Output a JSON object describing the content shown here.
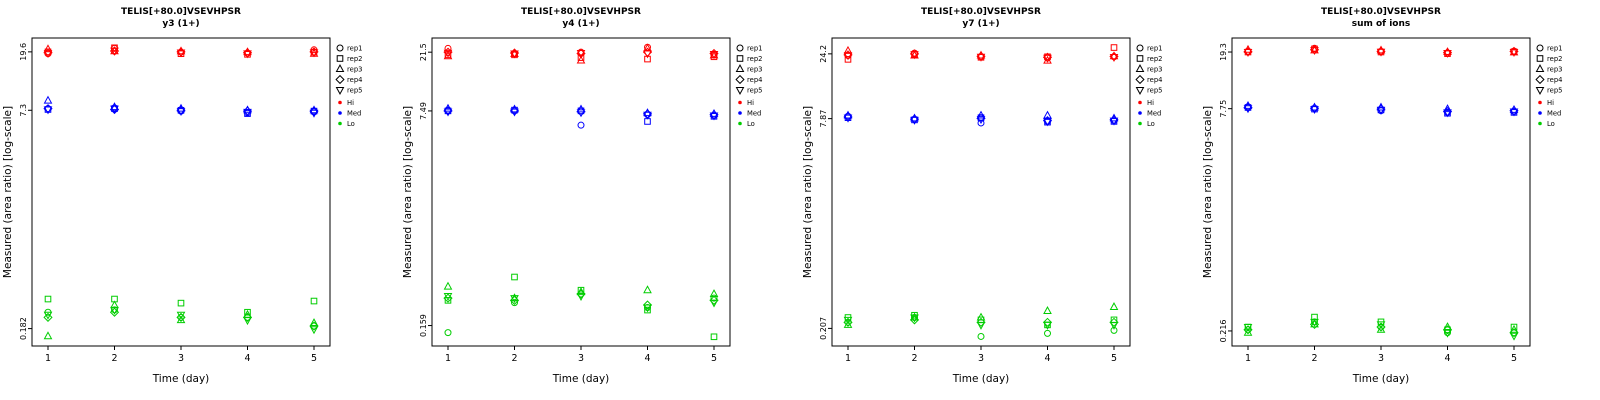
{
  "axes": {
    "xlabel": "Time (day)",
    "ylabel": "Measured (area ratio) [log-scale]"
  },
  "legend": {
    "reps": [
      {
        "label": "rep1",
        "symbol": "circle"
      },
      {
        "label": "rep2",
        "symbol": "square"
      },
      {
        "label": "rep3",
        "symbol": "triangle"
      },
      {
        "label": "rep4",
        "symbol": "diamond"
      },
      {
        "label": "rep5",
        "symbol": "triangle-down"
      }
    ],
    "levels": [
      {
        "label": "Hi",
        "color": "#FF0000"
      },
      {
        "label": "Med",
        "color": "#0000FF"
      },
      {
        "label": "Lo",
        "color": "#00CD00"
      }
    ]
  },
  "chart_data": [
    {
      "type": "scatter",
      "title": "TELIS[+80.0]VSEVHPSR",
      "subtitle": "y3 (1+)",
      "xlabel": "Time (day)",
      "ylabel": "Measured (area ratio) [log-scale]",
      "y_scale": "log",
      "x_ticks": [
        1,
        2,
        3,
        4,
        5
      ],
      "y_ticks": [
        19.6,
        7.3,
        0.182
      ],
      "series": [
        {
          "name": "Hi",
          "color": "#FF0000",
          "values_by_day": [
            [
              19.0,
              19.6,
              20.5,
              19.3,
              19.2
            ],
            [
              20.8,
              21.0,
              19.8,
              19.9,
              20.0
            ],
            [
              19.5,
              19.0,
              19.8,
              19.6,
              19.4
            ],
            [
              19.2,
              18.8,
              19.5,
              19.3,
              19.1
            ],
            [
              20.3,
              19.5,
              19.0,
              19.6,
              19.4
            ]
          ]
        },
        {
          "name": "Med",
          "color": "#0000FF",
          "values_by_day": [
            [
              7.5,
              7.4,
              8.6,
              7.5,
              7.4
            ],
            [
              7.6,
              7.5,
              7.7,
              7.4,
              7.5
            ],
            [
              7.2,
              7.3,
              7.5,
              7.3,
              7.2
            ],
            [
              7.0,
              6.9,
              7.3,
              7.2,
              7.1
            ],
            [
              7.1,
              7.2,
              7.3,
              7.2,
              7.0
            ]
          ]
        },
        {
          "name": "Lo",
          "color": "#00CD00",
          "values_by_day": [
            [
              0.24,
              0.3,
              0.16,
              0.22,
              0.23
            ],
            [
              0.25,
              0.3,
              0.27,
              0.24,
              0.25
            ],
            [
              0.22,
              0.28,
              0.21,
              0.22,
              0.23
            ],
            [
              0.22,
              0.24,
              0.23,
              0.22,
              0.21
            ],
            [
              0.19,
              0.29,
              0.2,
              0.19,
              0.18
            ]
          ]
        }
      ]
    },
    {
      "type": "scatter",
      "title": "TELIS[+80.0]VSEVHPSR",
      "subtitle": "y4 (1+)",
      "xlabel": "Time (day)",
      "ylabel": "Measured (area ratio) [log-scale]",
      "y_scale": "log",
      "x_ticks": [
        1,
        2,
        3,
        4,
        5
      ],
      "y_ticks": [
        21.5,
        7.49,
        0.159
      ],
      "series": [
        {
          "name": "Hi",
          "color": "#FF0000",
          "values_by_day": [
            [
              23.0,
              20.5,
              20.0,
              21.5,
              21.3
            ],
            [
              21.0,
              20.5,
              20.8,
              21.2,
              21.0
            ],
            [
              21.5,
              19.5,
              18.5,
              21.0,
              21.2
            ],
            [
              23.5,
              19.0,
              23.0,
              21.5,
              21.0
            ],
            [
              20.5,
              19.8,
              20.3,
              21.0,
              20.8
            ]
          ]
        },
        {
          "name": "Med",
          "color": "#0000FF",
          "values_by_day": [
            [
              7.6,
              7.5,
              7.8,
              7.5,
              7.4
            ],
            [
              7.5,
              7.6,
              7.7,
              7.5,
              7.4
            ],
            [
              5.8,
              7.5,
              7.7,
              7.4,
              7.3
            ],
            [
              7.0,
              6.2,
              7.2,
              7.1,
              7.0
            ],
            [
              6.9,
              6.8,
              7.1,
              7.0,
              6.9
            ]
          ]
        },
        {
          "name": "Lo",
          "color": "#00CD00",
          "values_by_day": [
            [
              0.14,
              0.25,
              0.32,
              0.26,
              0.27
            ],
            [
              0.24,
              0.38,
              0.26,
              0.25,
              0.26
            ],
            [
              0.28,
              0.3,
              0.29,
              0.28,
              0.27
            ],
            [
              0.22,
              0.21,
              0.3,
              0.23,
              0.22
            ],
            [
              0.26,
              0.13,
              0.28,
              0.25,
              0.24
            ]
          ]
        }
      ]
    },
    {
      "type": "scatter",
      "title": "TELIS[+80.0]VSEVHPSR",
      "subtitle": "y7 (1+)",
      "xlabel": "Time (day)",
      "ylabel": "Measured (area ratio) [log-scale]",
      "y_scale": "log",
      "x_ticks": [
        1,
        2,
        3,
        4,
        5
      ],
      "y_ticks": [
        24.2,
        7.87,
        0.207
      ],
      "series": [
        {
          "name": "Hi",
          "color": "#FF0000",
          "values_by_day": [
            [
              23.5,
              22.0,
              25.5,
              23.8,
              23.6
            ],
            [
              24.5,
              24.0,
              23.5,
              24.2,
              24.0
            ],
            [
              23.0,
              22.8,
              23.5,
              23.2,
              23.0
            ],
            [
              22.5,
              23.0,
              21.5,
              22.8,
              22.6
            ],
            [
              23.0,
              27.0,
              23.2,
              23.1,
              22.9
            ]
          ]
        },
        {
          "name": "Med",
          "color": "#0000FF",
          "values_by_day": [
            [
              8.2,
              8.0,
              8.3,
              8.1,
              8.0
            ],
            [
              7.8,
              7.7,
              7.9,
              7.8,
              7.7
            ],
            [
              7.3,
              8.0,
              8.3,
              7.9,
              7.8
            ],
            [
              7.5,
              7.4,
              8.3,
              7.6,
              7.5
            ],
            [
              7.6,
              7.5,
              7.9,
              7.7,
              7.6
            ]
          ]
        },
        {
          "name": "Lo",
          "color": "#00CD00",
          "values_by_day": [
            [
              0.23,
              0.25,
              0.22,
              0.23,
              0.24
            ],
            [
              0.25,
              0.26,
              0.25,
              0.24,
              0.25
            ],
            [
              0.18,
              0.24,
              0.25,
              0.23,
              0.22
            ],
            [
              0.19,
              0.22,
              0.28,
              0.23,
              0.22
            ],
            [
              0.2,
              0.24,
              0.3,
              0.23,
              0.22
            ]
          ]
        }
      ]
    },
    {
      "type": "scatter",
      "title": "TELIS[+80.0]VSEVHPSR",
      "subtitle": "sum of ions",
      "xlabel": "Time (day)",
      "ylabel": "Measured (area ratio) [log-scale]",
      "y_scale": "log",
      "x_ticks": [
        1,
        2,
        3,
        4,
        5
      ],
      "y_ticks": [
        19.3,
        7.75,
        0.216
      ],
      "series": [
        {
          "name": "Hi",
          "color": "#FF0000",
          "values_by_day": [
            [
              19.5,
              19.3,
              20.0,
              19.4,
              19.3
            ],
            [
              20.5,
              20.3,
              19.8,
              20.0,
              19.9
            ],
            [
              19.5,
              19.3,
              19.8,
              19.5,
              19.4
            ],
            [
              19.0,
              18.8,
              19.3,
              19.1,
              19.0
            ],
            [
              19.6,
              19.4,
              19.2,
              19.5,
              19.3
            ]
          ]
        },
        {
          "name": "Med",
          "color": "#0000FF",
          "values_by_day": [
            [
              8.0,
              7.9,
              8.1,
              7.9,
              7.8
            ],
            [
              7.8,
              7.7,
              7.9,
              7.8,
              7.7
            ],
            [
              7.5,
              7.6,
              7.9,
              7.7,
              7.6
            ],
            [
              7.3,
              7.2,
              7.7,
              7.4,
              7.3
            ],
            [
              7.4,
              7.3,
              7.6,
              7.5,
              7.4
            ]
          ]
        },
        {
          "name": "Lo",
          "color": "#00CD00",
          "values_by_day": [
            [
              0.22,
              0.23,
              0.21,
              0.22,
              0.23
            ],
            [
              0.25,
              0.27,
              0.24,
              0.24,
              0.25
            ],
            [
              0.23,
              0.25,
              0.22,
              0.23,
              0.24
            ],
            [
              0.21,
              0.22,
              0.23,
              0.22,
              0.21
            ],
            [
              0.21,
              0.23,
              0.22,
              0.21,
              0.2
            ]
          ]
        }
      ]
    }
  ]
}
